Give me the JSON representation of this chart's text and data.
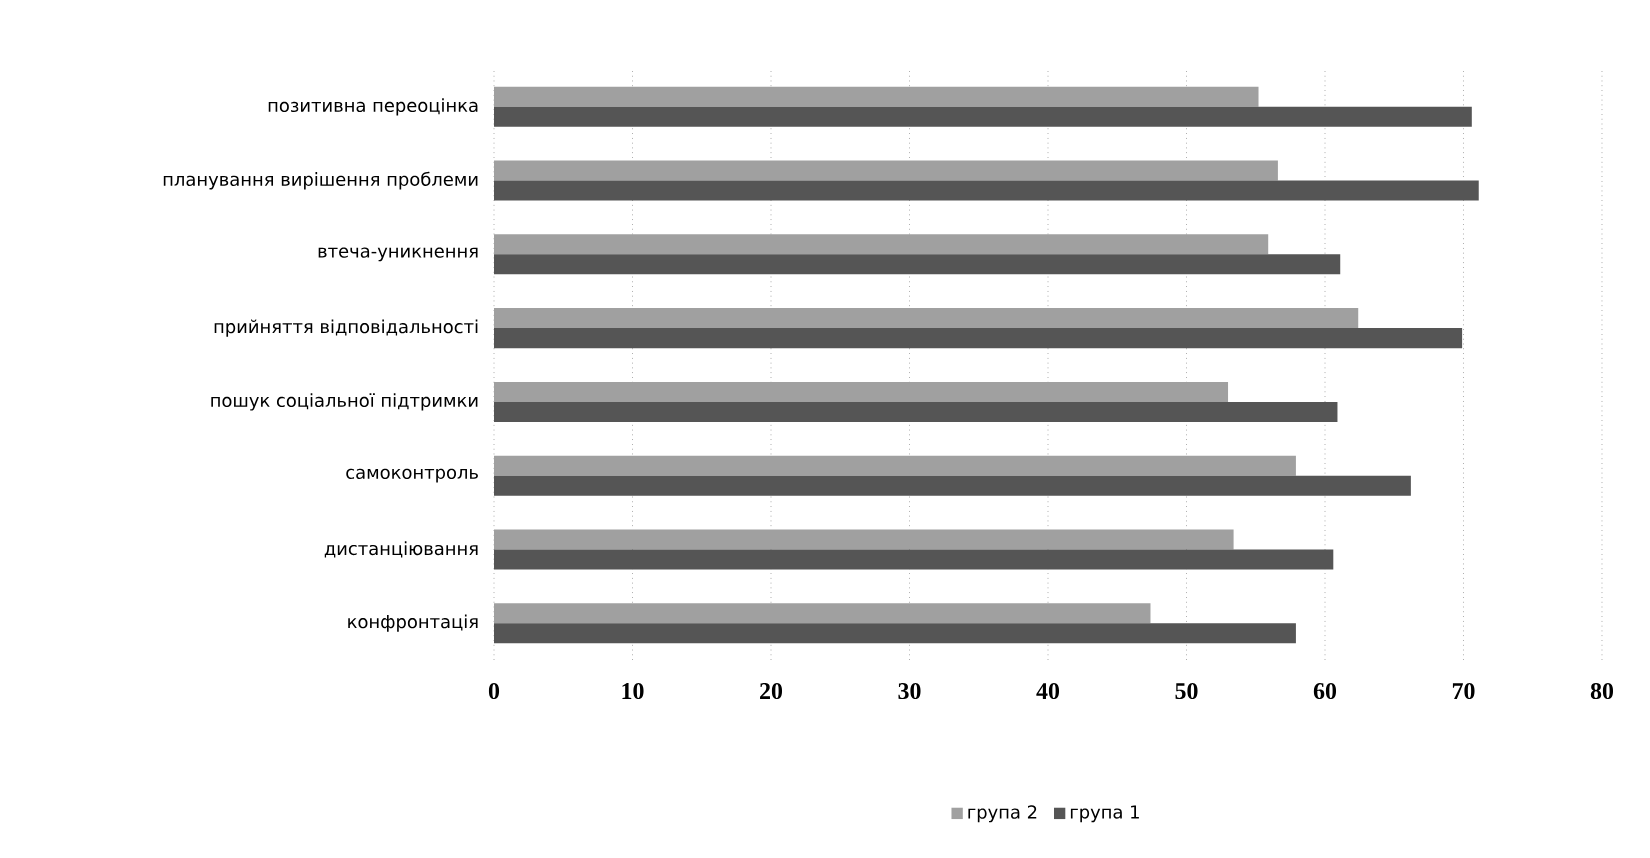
{
  "chart_data": {
    "type": "bar",
    "orientation": "horizontal",
    "categories": [
      "позитивна переоцінка",
      "планування вирішення проблеми",
      "втеча-уникнення",
      "прийняття відповідальності",
      "пошук соціальної підтримки",
      "самоконтроль",
      "дистанціювання",
      "конфронтація"
    ],
    "series": [
      {
        "name": "група 2",
        "color": "#a0a0a0",
        "values": [
          55.2,
          56.6,
          55.9,
          62.4,
          53.0,
          57.9,
          53.4,
          47.4
        ]
      },
      {
        "name": "група 1",
        "color": "#555555",
        "values": [
          70.6,
          71.1,
          61.1,
          69.9,
          60.9,
          66.2,
          60.6,
          57.9
        ]
      }
    ],
    "xlim": [
      0,
      80
    ],
    "xticks": [
      0,
      10,
      20,
      30,
      40,
      50,
      60,
      70,
      80
    ],
    "grid": "x",
    "legend": "bottom"
  }
}
